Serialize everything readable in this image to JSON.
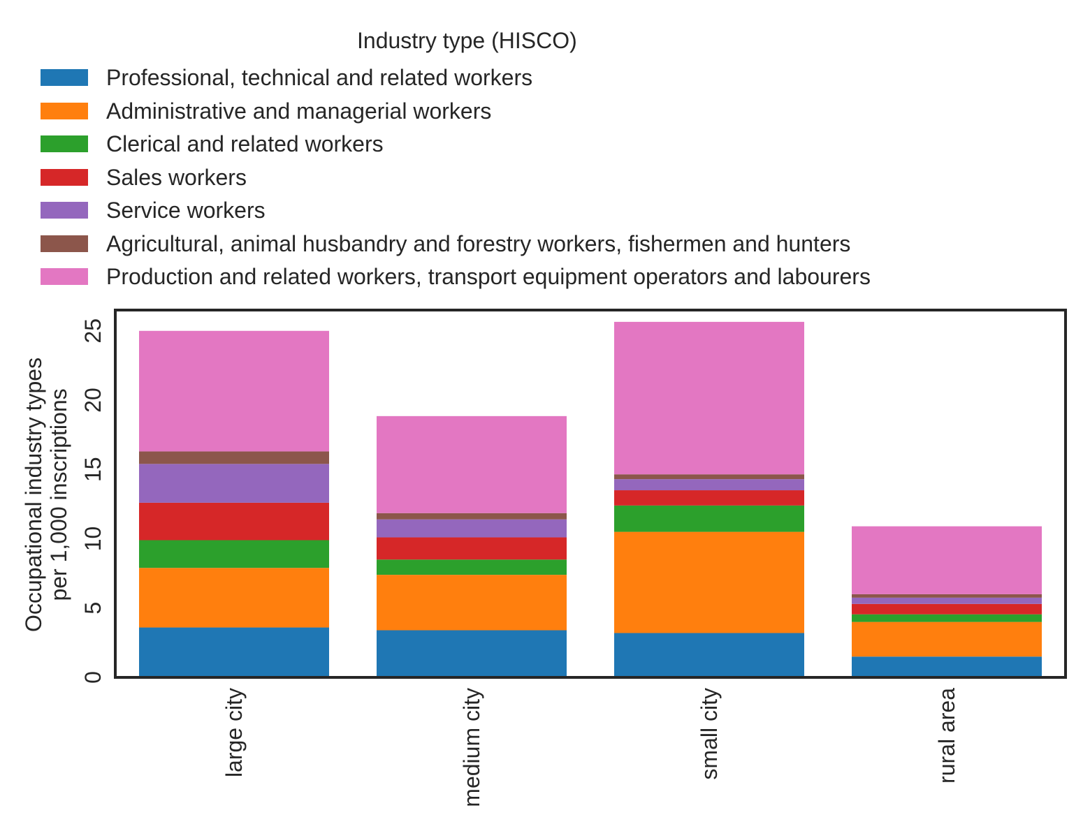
{
  "chart_data": {
    "type": "bar",
    "stacked": true,
    "legend_title": "Industry type (HISCO)",
    "ylabel_line1": "Occupational industry types",
    "ylabel_line2": "per 1,000 inscriptions",
    "xlabel": "",
    "ylim": [
      0,
      26.5
    ],
    "yticks": [
      0,
      5,
      10,
      15,
      20,
      25
    ],
    "grid": false,
    "legend_position": "top",
    "categories": [
      "large city",
      "medium city",
      "small city",
      "rural area"
    ],
    "series": [
      {
        "name": "Professional, technical and related workers",
        "color": "#1f77b4",
        "values": [
          3.6,
          3.4,
          3.2,
          1.5
        ]
      },
      {
        "name": "Administrative and managerial workers",
        "color": "#ff7f0e",
        "values": [
          4.3,
          4.0,
          7.3,
          2.5
        ]
      },
      {
        "name": "Clerical and related workers",
        "color": "#2ca02c",
        "values": [
          2.0,
          1.1,
          1.9,
          0.55
        ]
      },
      {
        "name": "Sales workers",
        "color": "#d62728",
        "values": [
          2.7,
          1.6,
          1.1,
          0.75
        ]
      },
      {
        "name": "Service workers",
        "color": "#9467bd",
        "values": [
          2.8,
          1.3,
          0.8,
          0.45
        ]
      },
      {
        "name": "Agricultural, animal husbandry and forestry workers, fishermen and hunters",
        "color": "#8c564b",
        "values": [
          0.9,
          0.45,
          0.35,
          0.25
        ]
      },
      {
        "name": "Production and related workers, transport equipment operators and labourers",
        "color": "#e377c2",
        "values": [
          8.7,
          7.0,
          11.0,
          4.9
        ]
      }
    ]
  }
}
